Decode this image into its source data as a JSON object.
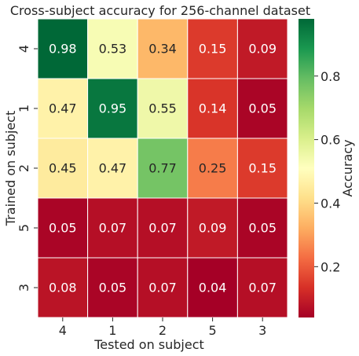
{
  "chart_data": {
    "type": "heatmap",
    "title": "Cross-subject accuracy for 256-channel dataset",
    "xlabel": "Tested on subject",
    "ylabel": "Trained on subject",
    "x_categories": [
      "4",
      "1",
      "2",
      "5",
      "3"
    ],
    "y_categories": [
      "4",
      "1",
      "2",
      "5",
      "3"
    ],
    "values": [
      [
        0.98,
        0.53,
        0.34,
        0.15,
        0.09
      ],
      [
        0.47,
        0.95,
        0.55,
        0.14,
        0.05
      ],
      [
        0.45,
        0.47,
        0.77,
        0.25,
        0.15
      ],
      [
        0.05,
        0.07,
        0.07,
        0.09,
        0.05
      ],
      [
        0.08,
        0.05,
        0.07,
        0.04,
        0.07
      ]
    ],
    "colormap": "RdYlGn",
    "colorbar": {
      "label": "Accuracy",
      "ticks": [
        "0.2",
        "0.4",
        "0.6",
        "0.8"
      ],
      "range": [
        0.04,
        0.98
      ]
    }
  }
}
